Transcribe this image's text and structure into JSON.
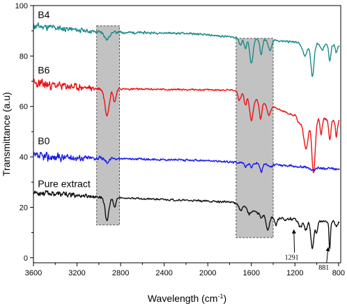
{
  "chart_data": {
    "type": "line",
    "xlabel": "Wavelength (cm",
    "xlabel_sup": "-1",
    "xlabel_tail": ")",
    "ylabel": "Transmittance (a.u)",
    "xlim": [
      3600,
      780
    ],
    "ylim": [
      -2,
      100
    ],
    "x_ticks": [
      3600,
      3200,
      2800,
      2400,
      2000,
      1600,
      1200,
      800
    ],
    "y_ticks": [
      0,
      20,
      40,
      60,
      80,
      100
    ],
    "grid": false,
    "shaded_regions": [
      {
        "x_from": 3020,
        "x_to": 2810,
        "y_from": 13,
        "y_to": 92
      },
      {
        "x_from": 1740,
        "x_to": 1400,
        "y_from": 8,
        "y_to": 87
      }
    ],
    "annotations": [
      {
        "label": "1291",
        "text_x": 1230,
        "text_y": 2,
        "arrow_to_x": 1210,
        "arrow_to_y": 11
      },
      {
        "label": "881",
        "text_x": 935,
        "text_y": -2,
        "arrow_to_x": 895,
        "arrow_to_y": 4
      }
    ],
    "series": [
      {
        "name": "B4",
        "label_x": 3560,
        "label_y": 95,
        "color": "#1a8a8a",
        "baseline": 89,
        "slope": [
          [
            3600,
            3
          ],
          [
            3000,
            0.5
          ],
          [
            2200,
            0
          ],
          [
            1760,
            -1.5
          ],
          [
            780,
            -5
          ]
        ],
        "noise_pattern": [
          [
            3600,
            1.8
          ],
          [
            3000,
            0.8
          ],
          [
            2400,
            0.5
          ],
          [
            1800,
            0.5
          ],
          [
            1400,
            0.5
          ],
          [
            780,
            0.6
          ]
        ],
        "seed": 11,
        "peaks": [
          {
            "x": 2925,
            "depth": 3,
            "width": 28
          },
          {
            "x": 1700,
            "depth": 3,
            "width": 18
          },
          {
            "x": 1655,
            "depth": 4,
            "width": 16
          },
          {
            "x": 1600,
            "depth": 10,
            "width": 22
          },
          {
            "x": 1510,
            "depth": 6,
            "width": 16
          },
          {
            "x": 1430,
            "depth": 4,
            "width": 22
          },
          {
            "x": 1110,
            "depth": 5,
            "width": 30
          },
          {
            "x": 1040,
            "depth": 13,
            "width": 20
          },
          {
            "x": 950,
            "depth": 2,
            "width": 20
          },
          {
            "x": 880,
            "depth": 6,
            "width": 14
          },
          {
            "x": 820,
            "depth": 3,
            "width": 12
          }
        ]
      },
      {
        "name": "B6",
        "label_x": 3560,
        "label_y": 73,
        "color": "#ee1111",
        "baseline": 67,
        "slope": [
          [
            3600,
            2
          ],
          [
            3000,
            0
          ],
          [
            1760,
            -0.5
          ],
          [
            1250,
            -10
          ],
          [
            780,
            -13
          ]
        ],
        "noise_pattern": [
          [
            3600,
            2.5
          ],
          [
            3000,
            1.2
          ],
          [
            2800,
            0.5
          ],
          [
            1800,
            0.4
          ],
          [
            1400,
            0.5
          ],
          [
            780,
            0.6
          ]
        ],
        "seed": 23,
        "peaks": [
          {
            "x": 2925,
            "depth": 10,
            "width": 28
          },
          {
            "x": 2855,
            "depth": 5,
            "width": 18
          },
          {
            "x": 1710,
            "depth": 3,
            "width": 16
          },
          {
            "x": 1655,
            "depth": 4,
            "width": 14
          },
          {
            "x": 1600,
            "depth": 9,
            "width": 22
          },
          {
            "x": 1515,
            "depth": 7,
            "width": 16
          },
          {
            "x": 1440,
            "depth": 4,
            "width": 20
          },
          {
            "x": 1160,
            "depth": 3,
            "width": 25
          },
          {
            "x": 1100,
            "depth": 13,
            "width": 30
          },
          {
            "x": 1030,
            "depth": 22,
            "width": 22
          },
          {
            "x": 960,
            "depth": 6,
            "width": 14
          },
          {
            "x": 880,
            "depth": 8,
            "width": 14
          },
          {
            "x": 820,
            "depth": 6,
            "width": 12
          }
        ]
      },
      {
        "name": "B0",
        "label_x": 3560,
        "label_y": 45,
        "color": "#1a1aee",
        "baseline": 39,
        "slope": [
          [
            3600,
            1
          ],
          [
            3000,
            0.5
          ],
          [
            2000,
            -0.5
          ],
          [
            1600,
            -1.5
          ],
          [
            780,
            -4
          ]
        ],
        "noise_pattern": [
          [
            3600,
            2.5
          ],
          [
            3000,
            1
          ],
          [
            2800,
            0.5
          ],
          [
            1800,
            0.5
          ],
          [
            1400,
            0.6
          ],
          [
            780,
            0.6
          ]
        ],
        "seed": 37,
        "peaks": [
          {
            "x": 2925,
            "depth": 1.5,
            "width": 25
          },
          {
            "x": 1650,
            "depth": 1.5,
            "width": 18
          },
          {
            "x": 1600,
            "depth": 1.5,
            "width": 16
          },
          {
            "x": 1510,
            "depth": 3,
            "width": 16
          },
          {
            "x": 1420,
            "depth": 1,
            "width": 18
          },
          {
            "x": 1040,
            "depth": 1.2,
            "width": 28
          }
        ]
      },
      {
        "name": "Pure extract",
        "label_x": 3560,
        "label_y": 28,
        "color": "#111111",
        "baseline": 24,
        "slope": [
          [
            3600,
            2
          ],
          [
            2950,
            0
          ],
          [
            1760,
            -2
          ],
          [
            1450,
            -8
          ],
          [
            780,
            -10
          ]
        ],
        "noise_pattern": [
          [
            3600,
            1.6
          ],
          [
            3000,
            0.8
          ],
          [
            2800,
            0.4
          ],
          [
            1800,
            0.5
          ],
          [
            1400,
            0.7
          ],
          [
            780,
            0.8
          ]
        ],
        "seed": 53,
        "peaks": [
          {
            "x": 2925,
            "depth": 9,
            "width": 25
          },
          {
            "x": 2855,
            "depth": 4,
            "width": 16
          },
          {
            "x": 1700,
            "depth": 2,
            "width": 18
          },
          {
            "x": 1620,
            "depth": 2,
            "width": 18
          },
          {
            "x": 1510,
            "depth": 1.5,
            "width": 14
          },
          {
            "x": 1450,
            "depth": 5,
            "width": 18
          },
          {
            "x": 1375,
            "depth": 3,
            "width": 14
          },
          {
            "x": 1290,
            "depth": 1,
            "width": 18
          },
          {
            "x": 1150,
            "depth": 3,
            "width": 20
          },
          {
            "x": 1100,
            "depth": 4,
            "width": 20
          },
          {
            "x": 1040,
            "depth": 11,
            "width": 20
          },
          {
            "x": 1000,
            "depth": 5,
            "width": 14
          },
          {
            "x": 881,
            "depth": 11,
            "width": 9
          },
          {
            "x": 820,
            "depth": 2,
            "width": 10
          }
        ]
      }
    ]
  }
}
